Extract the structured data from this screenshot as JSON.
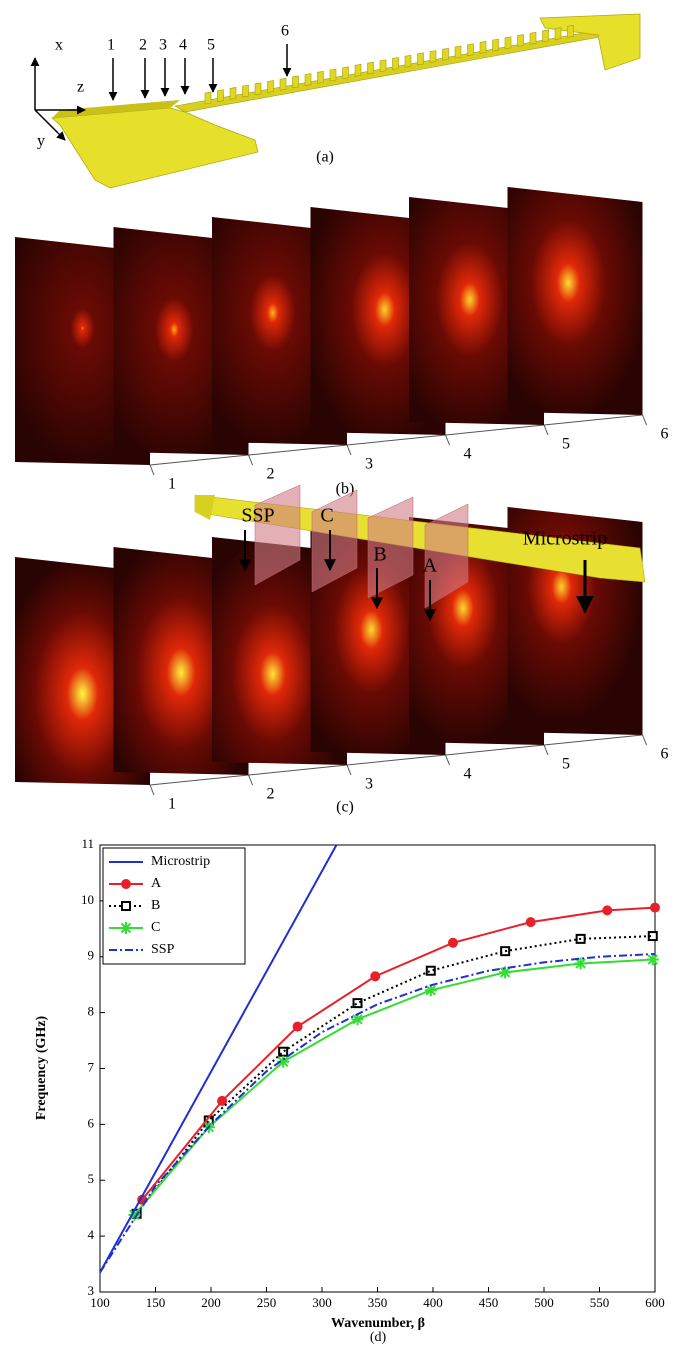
{
  "panel_a": {
    "caption": "(a)",
    "axes": [
      "x",
      "z",
      "y"
    ],
    "markers": [
      "1",
      "2",
      "3",
      "4",
      "5",
      "6"
    ]
  },
  "panel_b": {
    "caption": "(b)",
    "planes": [
      "1",
      "2",
      "3",
      "4",
      "5",
      "6"
    ]
  },
  "panel_c": {
    "caption": "(c)",
    "planes": [
      "1",
      "2",
      "3",
      "4",
      "5",
      "6"
    ]
  },
  "chart_data": {
    "type": "line",
    "caption": "(d)",
    "x_label": "Wavenumber, β",
    "y_label": "Frequency (GHz)",
    "xlim": [
      100,
      600
    ],
    "ylim": [
      3,
      11
    ],
    "xticks": [
      100,
      150,
      200,
      250,
      300,
      350,
      400,
      450,
      500,
      550,
      600
    ],
    "yticks": [
      3,
      4,
      5,
      6,
      7,
      8,
      9,
      10,
      11
    ],
    "legend": "top-left",
    "annotations": [
      "SSP",
      "C",
      "B",
      "A",
      "Microstrip"
    ],
    "series": [
      {
        "name": "Microstrip",
        "color": "#1f2fd0",
        "dash": "solid",
        "marker": "none",
        "x": [
          100,
          313
        ],
        "values": [
          3.35,
          11
        ]
      },
      {
        "name": "A",
        "color": "#e8202a",
        "dash": "solid",
        "marker": "circle",
        "x": [
          138,
          210,
          278,
          348,
          418,
          488,
          557,
          600
        ],
        "values": [
          4.65,
          6.42,
          7.75,
          8.65,
          9.25,
          9.62,
          9.83,
          9.88
        ]
      },
      {
        "name": "B",
        "color": "#000000",
        "dash": "dotted",
        "marker": "square",
        "x": [
          133,
          198,
          265,
          332,
          398,
          465,
          533,
          598
        ],
        "values": [
          4.4,
          6.07,
          7.3,
          8.17,
          8.75,
          9.1,
          9.32,
          9.37
        ]
      },
      {
        "name": "C",
        "color": "#33dd33",
        "dash": "solid",
        "marker": "asterisk",
        "x": [
          131,
          198,
          265,
          332,
          398,
          465,
          533,
          598
        ],
        "values": [
          4.38,
          5.95,
          7.12,
          7.88,
          8.4,
          8.72,
          8.88,
          8.95
        ]
      },
      {
        "name": "SSP",
        "color": "#1f2fd0",
        "dash": "dashdot",
        "marker": "none",
        "x": [
          100,
          150,
          200,
          250,
          300,
          350,
          400,
          450,
          500,
          550,
          600
        ],
        "values": [
          3.35,
          4.9,
          6.0,
          6.95,
          7.65,
          8.15,
          8.5,
          8.75,
          8.9,
          9.0,
          9.05
        ]
      }
    ]
  }
}
